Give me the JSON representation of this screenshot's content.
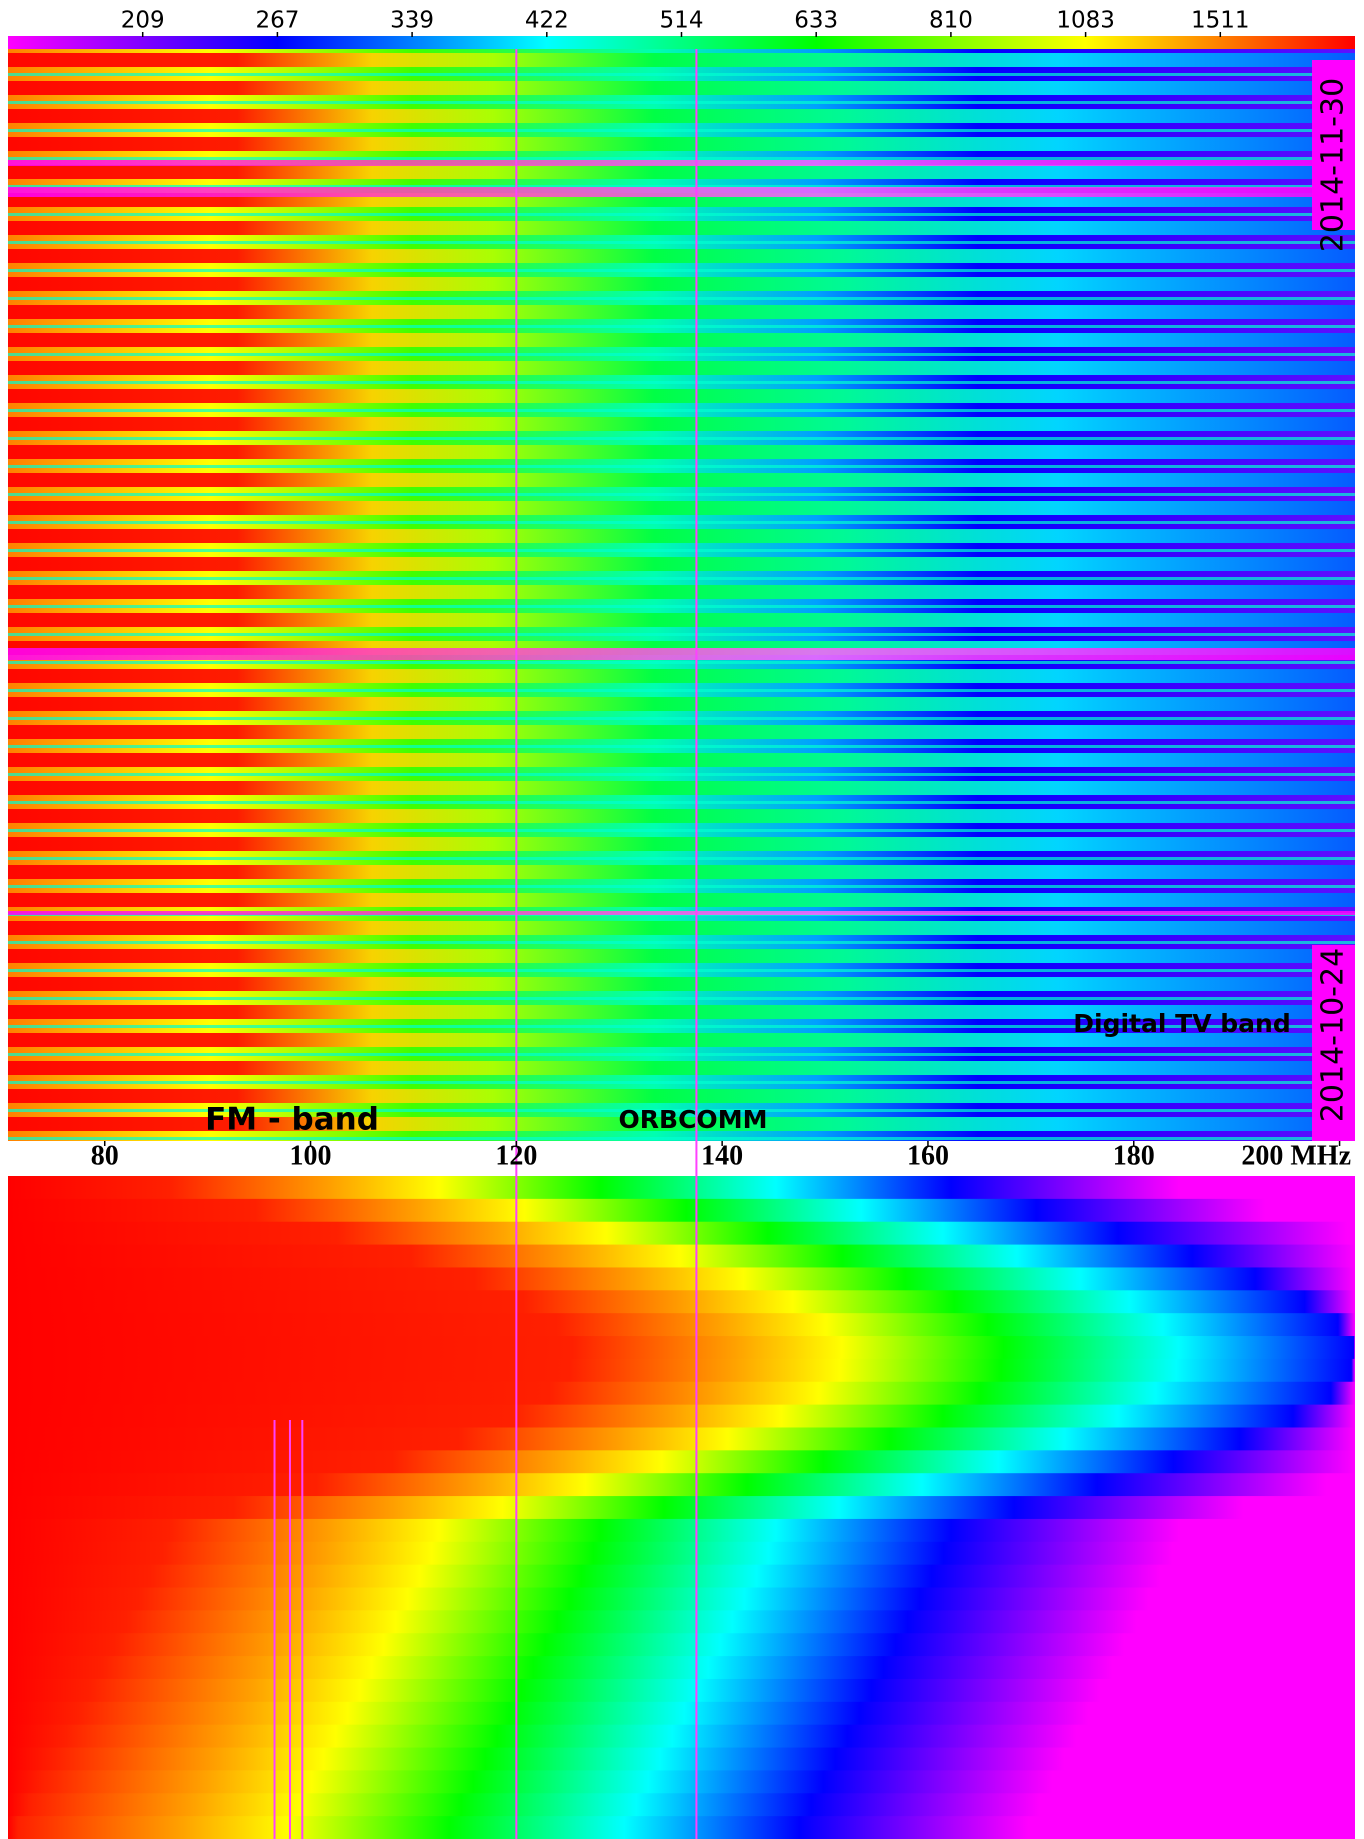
{
  "chart_data": {
    "type": "heatmap",
    "colorbar": {
      "ticks": [
        209,
        267,
        339,
        422,
        514,
        633,
        810,
        1083,
        1511
      ],
      "colormap": [
        "#ff00ff",
        "#0000ff",
        "#00ffff",
        "#00ff00",
        "#ffff00",
        "#ff0000"
      ]
    },
    "xlim": [
      70.6,
      201.5
    ],
    "xticks": [
      80,
      100,
      120,
      140,
      160,
      180,
      {
        "value": 200,
        "label": "200 MHz"
      }
    ],
    "date_labels": [
      "2014-11-30",
      "2014-10-24"
    ],
    "annotations": [
      "Digital TV band",
      "FM - band",
      "ORBCOMM"
    ]
  }
}
